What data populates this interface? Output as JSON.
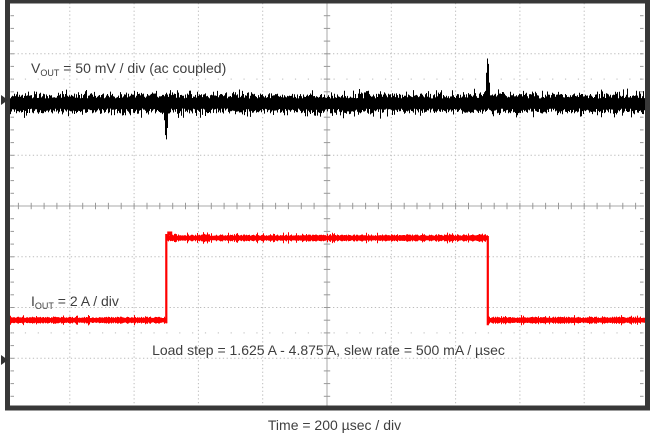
{
  "chart_data": {
    "type": "line",
    "subtype": "oscilloscope-screenshot",
    "title": "",
    "xlabel": "Time = 200 µsec / div",
    "x_axis": {
      "usec_per_div": 200,
      "divisions": 10
    },
    "y_axis": {
      "divisions": 8
    },
    "annotation": "Load step = 1.625 A - 4.875 A, slew rate = 500 mA / µsec",
    "series": [
      {
        "name": "VOUT",
        "label": {
          "prefix": "V",
          "sub": "OUT",
          "rest": " = 50 mV / div (ac coupled)"
        },
        "color": "#000000",
        "units_per_div": "50 mV",
        "coupling": "ac coupled",
        "center_offset_div": 2.02,
        "noise_pp_div": 0.5,
        "transients": [
          {
            "x_div": -2.5,
            "peak_div": -0.72
          },
          {
            "x_div": 2.5,
            "peak_div": 0.9
          }
        ],
        "marker_offset_div": 2.09
      },
      {
        "name": "IOUT",
        "label": {
          "prefix": "I",
          "sub": "OUT",
          "rest": " = 2 A / div"
        },
        "color": "#ff0000",
        "units_per_div": "2 A",
        "low_amps": 1.625,
        "high_amps": 4.875,
        "slew_rate": "500 mA / µsec",
        "low_level_div": -2.25,
        "high_level_div": -0.63,
        "step_rise_x_div": -2.5,
        "step_fall_x_div": 2.5,
        "noise_pp_div": 0.12,
        "marker_offset_div": -3.04
      }
    ],
    "grid": {
      "x_divisions": 10,
      "y_divisions": 8,
      "minor_per_div_x": 5,
      "minor_per_div_y": 4,
      "rise_time_dot_rows_div": [
        2.5,
        -2.5
      ],
      "style": "dotted majors, solid center cross with minor ticks"
    },
    "colors": {
      "background": "#ffffff",
      "frame": "#383838",
      "grid_dots": "#bcbcbc",
      "half_row_dots": "#c9c9c9",
      "center_line": "#a9a9a9",
      "minor_ticks": "#999999",
      "text": "#3f3f3f",
      "marker": "#333333"
    }
  }
}
